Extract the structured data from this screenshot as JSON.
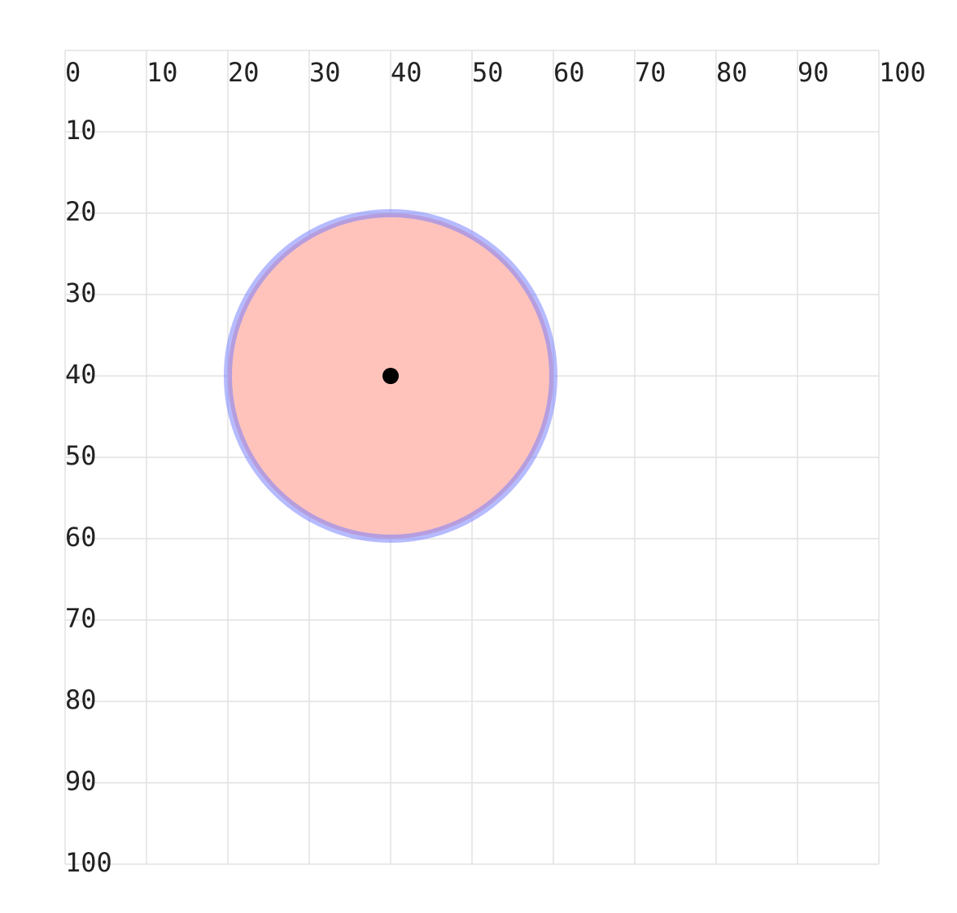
{
  "grid": {
    "xlim": [
      0,
      100
    ],
    "ylim": [
      0,
      100
    ],
    "xticks": [
      0,
      10,
      20,
      30,
      40,
      50,
      60,
      70,
      80,
      90,
      100
    ],
    "yticks": [
      10,
      20,
      30,
      40,
      50,
      60,
      70,
      80,
      90,
      100
    ]
  },
  "circle": {
    "cx": 40,
    "cy": 40,
    "r": 20,
    "fill": "#ffc0b8",
    "stroke": "rgba(110,120,255,0.5)"
  }
}
